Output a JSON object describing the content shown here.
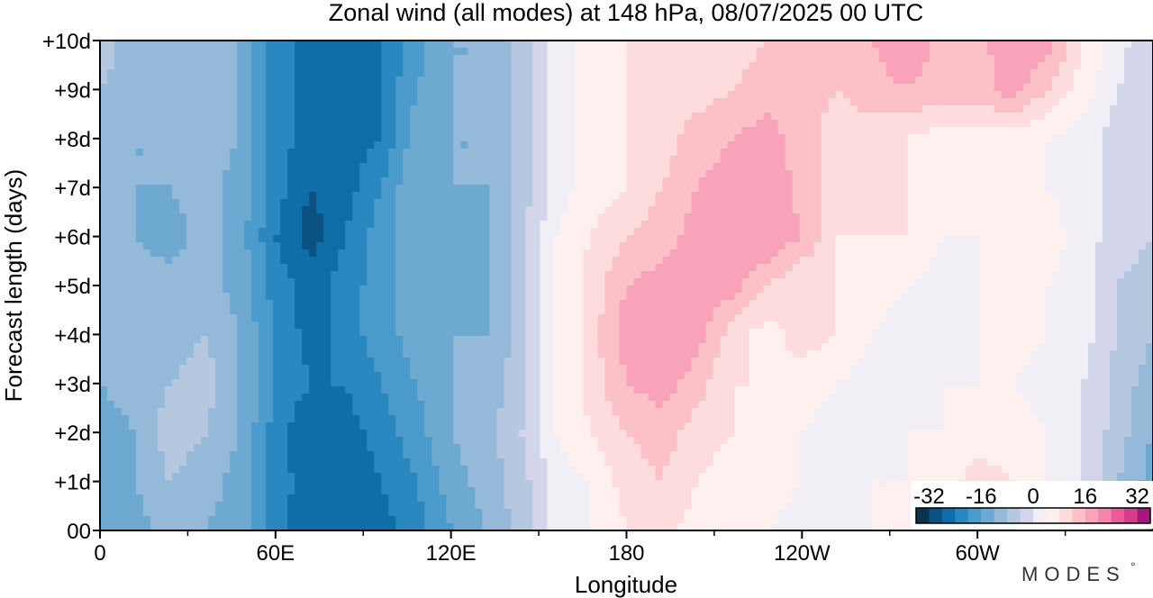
{
  "chart_data": {
    "type": "heatmap",
    "title": "Zonal wind (all modes) at 148 hPa,  08/07/2025  00 UTC",
    "xlabel": "Longitude",
    "ylabel": "Forecast length (days)",
    "x_range": [
      0,
      360
    ],
    "y_range": [
      0,
      10
    ],
    "x_ticks": [
      {
        "lon": 0,
        "label": "0"
      },
      {
        "lon": 60,
        "label": "60E"
      },
      {
        "lon": 120,
        "label": "120E"
      },
      {
        "lon": 180,
        "label": "180"
      },
      {
        "lon": 240,
        "label": "120W"
      },
      {
        "lon": 300,
        "label": "60W"
      }
    ],
    "x_minor_ticks": [
      30,
      90,
      150,
      210,
      270,
      330
    ],
    "y_ticks": [
      {
        "day": 0,
        "label": "00"
      },
      {
        "day": 1,
        "label": "+1d"
      },
      {
        "day": 2,
        "label": "+2d"
      },
      {
        "day": 3,
        "label": "+3d"
      },
      {
        "day": 4,
        "label": "+4d"
      },
      {
        "day": 5,
        "label": "+5d"
      },
      {
        "day": 6,
        "label": "+6d"
      },
      {
        "day": 7,
        "label": "+7d"
      },
      {
        "day": 8,
        "label": "+8d"
      },
      {
        "day": 9,
        "label": "+9d"
      },
      {
        "day": 10,
        "label": "+10d"
      }
    ],
    "lon_grid": [
      0,
      12,
      24,
      36,
      48,
      60,
      72,
      84,
      96,
      108,
      120,
      132,
      144,
      156,
      168,
      180,
      192,
      204,
      216,
      228,
      240,
      252,
      264,
      276,
      288,
      300,
      312,
      324,
      336,
      348,
      360
    ],
    "day_grid": [
      0,
      1,
      2,
      3,
      4,
      5,
      6,
      7,
      8,
      9,
      10
    ],
    "values_ms": [
      [
        -16,
        -14,
        -10,
        -12,
        -14,
        -22,
        -28,
        -26,
        -26,
        -22,
        -16,
        -12,
        -6,
        2,
        4,
        8,
        10,
        6,
        6,
        4,
        2,
        2,
        4,
        4,
        6,
        10,
        8,
        4,
        2,
        -6,
        -14
      ],
      [
        -14,
        -12,
        -8,
        -10,
        -14,
        -22,
        -26,
        -28,
        -24,
        -20,
        -14,
        -10,
        -6,
        2,
        4,
        10,
        12,
        8,
        6,
        6,
        4,
        2,
        4,
        4,
        6,
        10,
        8,
        4,
        0,
        -8,
        -14
      ],
      [
        -14,
        -12,
        -6,
        -8,
        -12,
        -22,
        -28,
        -26,
        -22,
        -18,
        -12,
        -10,
        -4,
        4,
        8,
        12,
        14,
        10,
        8,
        6,
        4,
        2,
        2,
        4,
        4,
        6,
        6,
        4,
        0,
        -6,
        -12
      ],
      [
        -12,
        -10,
        -8,
        -6,
        -12,
        -20,
        -24,
        -24,
        -20,
        -16,
        -12,
        -10,
        -6,
        4,
        10,
        16,
        18,
        14,
        8,
        8,
        6,
        4,
        2,
        2,
        4,
        4,
        4,
        2,
        0,
        -6,
        -10
      ],
      [
        -10,
        -10,
        -10,
        -8,
        -12,
        -20,
        -26,
        -22,
        -18,
        -14,
        -12,
        -12,
        -6,
        4,
        10,
        18,
        20,
        18,
        10,
        6,
        10,
        8,
        4,
        2,
        2,
        4,
        6,
        4,
        2,
        -4,
        -8
      ],
      [
        -10,
        -10,
        -10,
        -10,
        -14,
        -22,
        -26,
        -22,
        -18,
        -14,
        -16,
        -12,
        -6,
        4,
        10,
        16,
        18,
        18,
        18,
        12,
        8,
        8,
        6,
        4,
        2,
        4,
        4,
        4,
        2,
        -4,
        -6
      ],
      [
        -10,
        -12,
        -14,
        -10,
        -14,
        -24,
        -30,
        -24,
        -18,
        -12,
        -14,
        -12,
        -6,
        4,
        8,
        12,
        14,
        18,
        20,
        20,
        16,
        8,
        8,
        8,
        4,
        4,
        6,
        6,
        2,
        -2,
        -4
      ],
      [
        -8,
        -12,
        -12,
        -10,
        -14,
        -22,
        -28,
        -26,
        -20,
        -12,
        -12,
        -12,
        -6,
        2,
        6,
        8,
        12,
        16,
        18,
        20,
        14,
        10,
        10,
        8,
        6,
        6,
        6,
        4,
        2,
        -2,
        -4
      ],
      [
        -10,
        -12,
        -12,
        -10,
        -12,
        -22,
        -26,
        -26,
        -24,
        -14,
        -12,
        -12,
        -6,
        2,
        6,
        8,
        10,
        14,
        16,
        18,
        14,
        10,
        10,
        8,
        6,
        6,
        6,
        4,
        2,
        -2,
        -4
      ],
      [
        -8,
        -10,
        -10,
        -10,
        -12,
        -22,
        -26,
        -28,
        -24,
        -16,
        -12,
        -12,
        -6,
        2,
        6,
        8,
        10,
        10,
        12,
        14,
        14,
        12,
        14,
        16,
        14,
        14,
        18,
        12,
        6,
        0,
        -4
      ],
      [
        -6,
        -10,
        -10,
        -10,
        -12,
        -22,
        -26,
        -28,
        -24,
        -18,
        -12,
        -12,
        -6,
        2,
        6,
        8,
        10,
        10,
        10,
        12,
        12,
        12,
        16,
        20,
        14,
        14,
        20,
        18,
        8,
        2,
        -4
      ]
    ],
    "colorbar": {
      "tick_labels": [
        "-32",
        "-16",
        "0",
        "16",
        "32"
      ],
      "tick_values": [
        -32,
        -16,
        0,
        16,
        32
      ],
      "levels": [
        -36,
        -32,
        -28,
        -24,
        -20,
        -16,
        -12,
        -8,
        -4,
        0,
        4,
        8,
        12,
        16,
        20,
        24,
        28,
        32,
        36
      ],
      "colors": [
        "#06344f",
        "#0b5282",
        "#0f6ea8",
        "#2b87bf",
        "#4b9bcc",
        "#6ea9d2",
        "#95bad9",
        "#b6c8e0",
        "#d3d6ea",
        "#f1eef5",
        "#fdf0ee",
        "#fcdcdc",
        "#fbc1c7",
        "#f8a3b9",
        "#f385ad",
        "#ec5a9c",
        "#d93b8c",
        "#a8167c",
        "#7a0a6e"
      ]
    },
    "grid": false,
    "legend_position": "bottom-right, inside plot"
  },
  "branding": {
    "logo_text": "MODES",
    "logo_mark": "°"
  }
}
